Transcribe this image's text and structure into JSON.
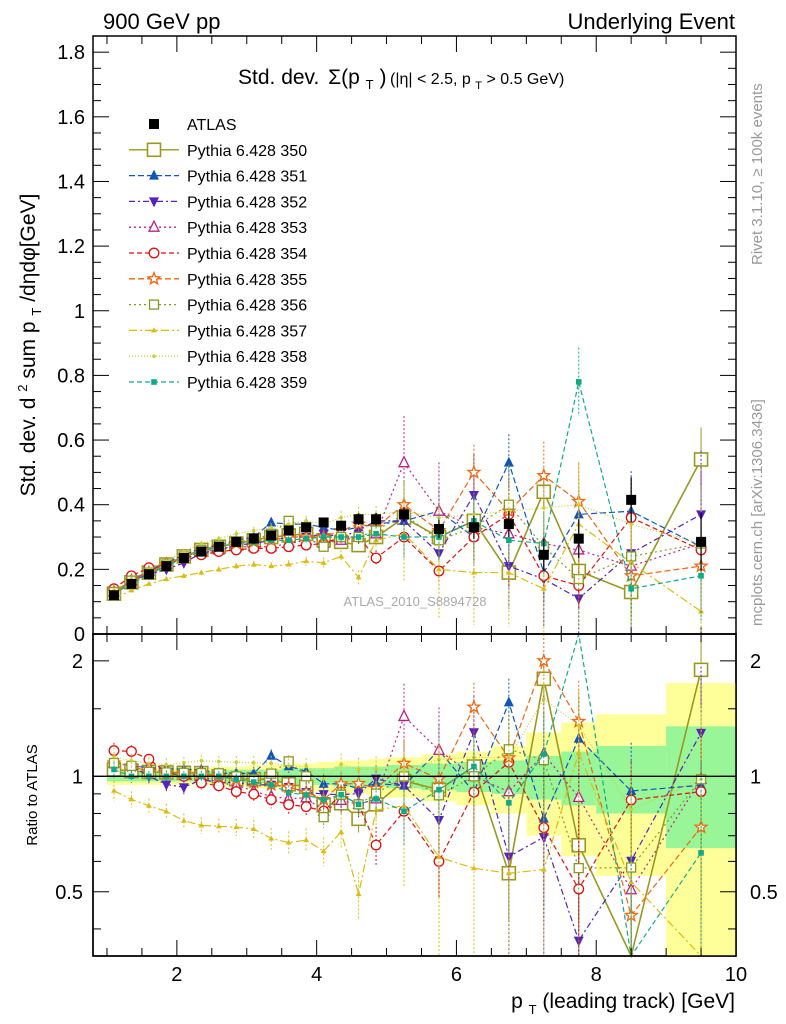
{
  "header": {
    "left": "900 GeV pp",
    "right": "Underlying Event"
  },
  "side_labels": {
    "rivet": "Rivet 3.1.10, ≥ 100k events",
    "mcplots": "mcplots.cern.ch [arXiv:1306.3436]"
  },
  "chart_data": [
    {
      "type": "scatter",
      "title_main": "Std. dev.",
      "title_sigma": "Σ(p",
      "title_sigma_sub": "T",
      "title_sigma_close": ")",
      "title_cut_a": "(|η| < 2.5, p",
      "title_cut_sub": "T",
      "title_cut_b": " > 0.5 GeV)",
      "ylabel_a": "Std. dev. d",
      "ylabel_sup": "2",
      "ylabel_b": " sum p",
      "ylabel_sub": "T",
      "ylabel_c": "/dηdφ[GeV]",
      "watermark": "ATLAS_2010_S8894728",
      "xlim": [
        0.8,
        10
      ],
      "ylim": [
        0,
        1.85
      ],
      "yticks": [
        "0",
        "0.2",
        "0.4",
        "0.6",
        "0.8",
        "1",
        "1.2",
        "1.4",
        "1.6",
        "1.8"
      ],
      "legend_position": "top-left",
      "x": [
        1.1,
        1.35,
        1.6,
        1.85,
        2.1,
        2.35,
        2.6,
        2.85,
        3.1,
        3.35,
        3.6,
        3.85,
        4.1,
        4.35,
        4.6,
        4.85,
        5.25,
        5.75,
        6.25,
        6.75,
        7.25,
        7.75,
        8.5,
        9.5
      ],
      "atlas": {
        "name": "ATLAS",
        "color": "#000000",
        "values": [
          0.12,
          0.155,
          0.185,
          0.21,
          0.235,
          0.255,
          0.27,
          0.285,
          0.295,
          0.305,
          0.32,
          0.33,
          0.345,
          0.335,
          0.355,
          0.355,
          0.37,
          0.325,
          0.33,
          0.34,
          0.245,
          0.295,
          0.415,
          0.285
        ],
        "errors": [
          0.005,
          0.005,
          0.005,
          0.006,
          0.006,
          0.007,
          0.007,
          0.008,
          0.009,
          0.01,
          0.011,
          0.012,
          0.014,
          0.016,
          0.018,
          0.02,
          0.022,
          0.028,
          0.035,
          0.04,
          0.05,
          0.06,
          0.07,
          0.09
        ]
      },
      "series": [
        {
          "name": "Pythia 6.428 350",
          "color": "#999922",
          "marker": "bigsquare",
          "dash": "",
          "values": [
            0.125,
            0.16,
            0.19,
            0.215,
            0.24,
            0.26,
            0.27,
            0.28,
            0.29,
            0.3,
            0.305,
            0.31,
            0.29,
            0.285,
            0.275,
            0.3,
            0.36,
            0.3,
            0.35,
            0.19,
            0.44,
            0.195,
            0.13,
            0.54
          ]
        },
        {
          "name": "Pythia 6.428 351",
          "color": "#1155bb",
          "marker": "tri-up",
          "dash": "6,3",
          "values": [
            0.13,
            0.165,
            0.195,
            0.22,
            0.245,
            0.265,
            0.275,
            0.29,
            0.3,
            0.345,
            0.34,
            0.34,
            0.33,
            0.32,
            0.33,
            0.34,
            0.35,
            0.38,
            0.3,
            0.53,
            0.19,
            0.37,
            0.38,
            0.27
          ]
        },
        {
          "name": "Pythia 6.428 352",
          "color": "#5522bb",
          "marker": "tri-down",
          "dash": "6,3,2,3",
          "values": [
            0.13,
            0.165,
            0.185,
            0.2,
            0.22,
            0.25,
            0.26,
            0.275,
            0.28,
            0.29,
            0.3,
            0.3,
            0.31,
            0.3,
            0.32,
            0.35,
            0.35,
            0.25,
            0.43,
            0.21,
            0.17,
            0.11,
            0.25,
            0.37
          ]
        },
        {
          "name": "Pythia 6.428 353",
          "color": "#bb2288",
          "marker": "tri-up-open",
          "dash": "2,3",
          "values": [
            0.13,
            0.165,
            0.195,
            0.215,
            0.24,
            0.255,
            0.26,
            0.27,
            0.27,
            0.27,
            0.28,
            0.29,
            0.28,
            0.29,
            0.3,
            0.31,
            0.53,
            0.38,
            0.33,
            0.31,
            0.28,
            0.26,
            0.21,
            0.28
          ]
        },
        {
          "name": "Pythia 6.428 354",
          "color": "#dd1111",
          "marker": "circle-open",
          "dash": "5,3",
          "values": [
            0.14,
            0.18,
            0.205,
            0.215,
            0.235,
            0.245,
            0.255,
            0.26,
            0.265,
            0.265,
            0.27,
            0.275,
            0.28,
            0.3,
            0.3,
            0.235,
            0.3,
            0.195,
            0.3,
            0.37,
            0.18,
            0.15,
            0.36,
            0.26
          ]
        },
        {
          "name": "Pythia 6.428 355",
          "color": "#ee6611",
          "marker": "star-open",
          "dash": "6,3",
          "values": [
            0.13,
            0.165,
            0.19,
            0.215,
            0.24,
            0.26,
            0.27,
            0.28,
            0.285,
            0.29,
            0.3,
            0.3,
            0.3,
            0.32,
            0.34,
            0.33,
            0.4,
            0.32,
            0.5,
            0.38,
            0.49,
            0.41,
            0.18,
            0.21
          ]
        },
        {
          "name": "Pythia 6.428 356",
          "color": "#889922",
          "marker": "square-open",
          "dash": "2,3",
          "values": [
            0.13,
            0.165,
            0.19,
            0.215,
            0.24,
            0.26,
            0.275,
            0.285,
            0.29,
            0.31,
            0.35,
            0.33,
            0.27,
            0.3,
            0.3,
            0.32,
            0.37,
            0.29,
            0.33,
            0.4,
            0.27,
            0.17,
            0.24,
            0.28
          ]
        },
        {
          "name": "Pythia 6.428 357",
          "color": "#ddbb11",
          "marker": "tri-small",
          "dash": "8,3,2,3",
          "values": [
            0.11,
            0.135,
            0.155,
            0.17,
            0.18,
            0.19,
            0.2,
            0.21,
            0.215,
            0.21,
            0.215,
            0.225,
            0.22,
            0.24,
            0.175,
            0.29,
            0.31,
            0.2,
            0.19,
            0.19,
            0.14,
            0.34,
            0.22,
            0.07
          ]
        },
        {
          "name": "Pythia 6.428 358",
          "color": "#cccc33",
          "marker": "dot",
          "dash": "1,2",
          "values": [
            0.135,
            0.17,
            0.2,
            0.225,
            0.255,
            0.28,
            0.295,
            0.31,
            0.32,
            0.33,
            0.34,
            0.35,
            0.34,
            0.36,
            0.37,
            0.37,
            0.38,
            0.36,
            0.37,
            0.38,
            0.39,
            0.4,
            0.34,
            0.28
          ]
        },
        {
          "name": "Pythia 6.428 359",
          "color": "#11aa88",
          "marker": "square-small",
          "dash": "5,3",
          "values": [
            0.125,
            0.155,
            0.185,
            0.21,
            0.235,
            0.255,
            0.27,
            0.28,
            0.285,
            0.29,
            0.29,
            0.295,
            0.3,
            0.3,
            0.3,
            0.31,
            0.3,
            0.3,
            0.35,
            0.29,
            0.28,
            0.78,
            0.14,
            0.18
          ]
        }
      ]
    },
    {
      "type": "scatter",
      "ylabel": "Ratio to ATLAS",
      "xlabel_a": "p",
      "xlabel_sub": "T",
      "xlabel_b": " (leading track) [GeV]",
      "xlim": [
        0.8,
        10
      ],
      "ylim": [
        0.34,
        2.35
      ],
      "xticks": [
        "2",
        "4",
        "6",
        "8",
        "10"
      ],
      "yticks_left": [
        "0.5",
        "1",
        "2"
      ],
      "yticks_right": [
        "0.5",
        "1",
        "2"
      ],
      "reference": 1,
      "band_inner_color": "#98f598",
      "band_outer_color": "#ffff99",
      "band_edges": [
        1.0,
        1.25,
        1.5,
        1.75,
        2.0,
        2.25,
        2.5,
        2.75,
        3.0,
        3.25,
        3.5,
        3.75,
        4.0,
        4.25,
        4.5,
        4.75,
        5.0,
        5.5,
        6.0,
        6.5,
        7.0,
        7.5,
        8.0,
        9.0,
        10.0
      ],
      "band_inner": [
        0.03,
        0.03,
        0.03,
        0.03,
        0.03,
        0.03,
        0.04,
        0.04,
        0.04,
        0.04,
        0.05,
        0.05,
        0.05,
        0.06,
        0.06,
        0.06,
        0.07,
        0.08,
        0.09,
        0.1,
        0.13,
        0.16,
        0.2,
        0.35
      ],
      "band_outer": [
        0.05,
        0.05,
        0.05,
        0.05,
        0.05,
        0.05,
        0.06,
        0.06,
        0.07,
        0.07,
        0.08,
        0.08,
        0.09,
        0.1,
        0.1,
        0.11,
        0.12,
        0.14,
        0.16,
        0.2,
        0.3,
        0.38,
        0.45,
        0.75
      ]
    }
  ]
}
